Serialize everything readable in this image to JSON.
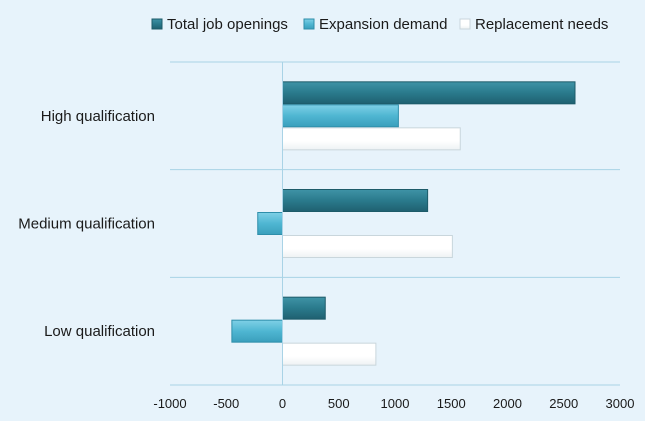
{
  "chart_data": {
    "type": "bar",
    "orientation": "horizontal",
    "title": "",
    "xlabel": "",
    "ylabel": "",
    "categories": [
      "High qualification",
      "Medium qualification",
      "Low qualification"
    ],
    "series": [
      {
        "name": "Total job openings",
        "values": [
          2600,
          1290,
          380
        ],
        "color": "#2a7a8c"
      },
      {
        "name": "Expansion demand",
        "values": [
          1030,
          -220,
          -450
        ],
        "color": "#4fb6d2"
      },
      {
        "name": "Replacement needs",
        "values": [
          1580,
          1510,
          830
        ],
        "color": "#ffffff"
      }
    ],
    "xlim": [
      -1000,
      3000
    ],
    "xticks": [
      -1000,
      -500,
      0,
      500,
      1000,
      1500,
      2000,
      2500,
      3000
    ],
    "xtick_labels": [
      "-1000",
      "-500",
      "0",
      "500",
      "1000",
      "1500",
      "2000",
      "2500",
      "3000"
    ],
    "grid": "horizontal separators between categories",
    "legend_position": "top-right"
  }
}
